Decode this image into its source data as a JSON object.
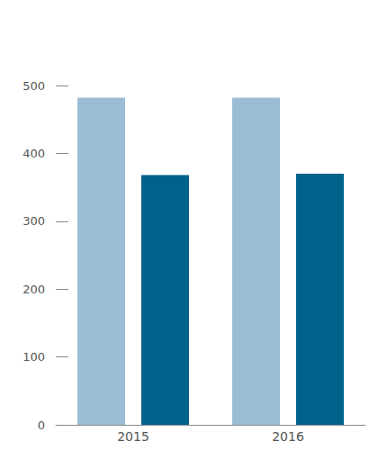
{
  "chart_data": {
    "type": "bar",
    "categories": [
      "2015",
      "2016"
    ],
    "series": [
      {
        "color": "#9bbdd4",
        "values": [
          482,
          482
        ]
      },
      {
        "color": "#00628a",
        "values": [
          368,
          370
        ]
      }
    ],
    "ylim": [
      0,
      500
    ],
    "yticks": [
      0,
      100,
      200,
      300,
      400,
      500
    ],
    "grid": false
  }
}
